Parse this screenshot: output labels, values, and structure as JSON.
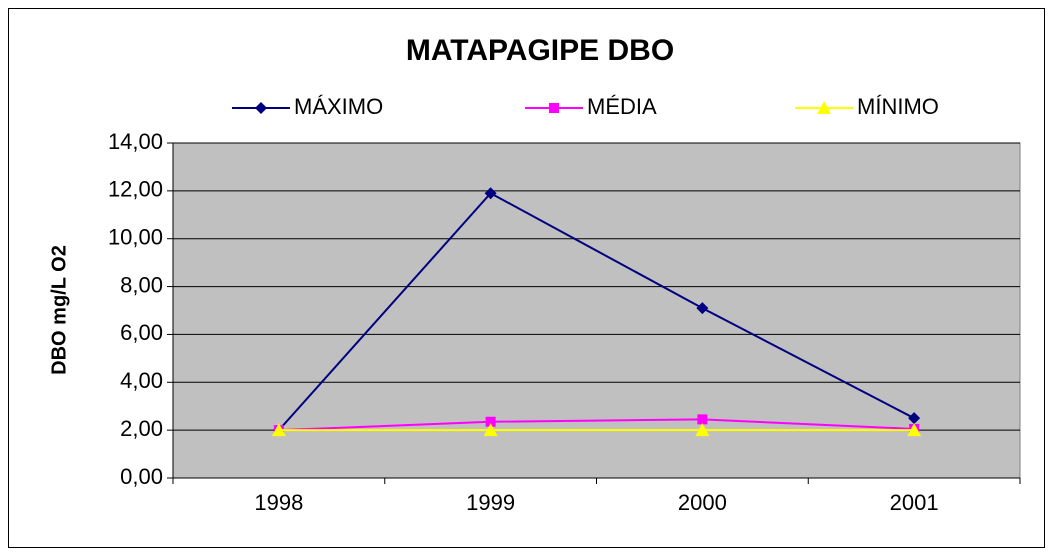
{
  "chart_data": {
    "type": "line",
    "title": "MATAPAGIPE DBO",
    "y_label": "DBO mg/L O2",
    "categories": [
      "1998",
      "1999",
      "2000",
      "2001"
    ],
    "series": [
      {
        "name": "MÁXIMO",
        "color": "#000080",
        "marker": "diamond",
        "values": [
          2.0,
          11.9,
          7.1,
          2.5
        ]
      },
      {
        "name": "MÉDIA",
        "color": "#ff00ff",
        "marker": "square",
        "values": [
          2.0,
          2.35,
          2.45,
          2.05
        ]
      },
      {
        "name": "MÍNIMO",
        "color": "#ffff00",
        "marker": "triangle",
        "values": [
          2.0,
          2.0,
          2.0,
          2.0
        ]
      }
    ],
    "ylim": [
      0,
      14
    ],
    "yticks": [
      {
        "value": 0,
        "label": "0,00"
      },
      {
        "value": 2,
        "label": "2,00"
      },
      {
        "value": 4,
        "label": "4,00"
      },
      {
        "value": 6,
        "label": "6,00"
      },
      {
        "value": 8,
        "label": "8,00"
      },
      {
        "value": 10,
        "label": "10,00"
      },
      {
        "value": 12,
        "label": "12,00"
      },
      {
        "value": 14,
        "label": "14,00"
      }
    ],
    "grid": true,
    "plot_background": "#c0c0c0",
    "legend": "top"
  }
}
